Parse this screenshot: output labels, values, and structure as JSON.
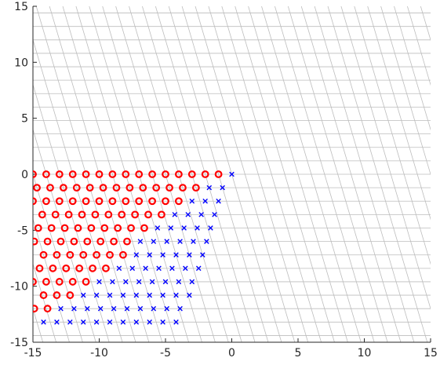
{
  "chart_data": {
    "type": "scatter",
    "title": "",
    "xlabel": "",
    "ylabel": "",
    "xlim": [
      -15,
      15
    ],
    "ylim": [
      -15,
      15
    ],
    "xticks": [
      -15,
      -10,
      -5,
      0,
      5,
      10,
      15
    ],
    "yticks": [
      -15,
      -10,
      -5,
      0,
      5,
      10,
      15
    ],
    "grid": "skewed lattice lines",
    "lattice": {
      "basis_x": [
        1,
        0
      ],
      "basis_y": [
        0.3,
        -1.2
      ],
      "rows": 13
    },
    "series": [
      {
        "marker": "circle",
        "color": "#ff0000",
        "points": [
          [
            -15.0,
            0.0
          ],
          [
            -14.0,
            0.0
          ],
          [
            -13.0,
            0.0
          ],
          [
            -12.0,
            0.0
          ],
          [
            -11.0,
            0.0
          ],
          [
            -10.0,
            0.0
          ],
          [
            -9.0,
            0.0
          ],
          [
            -8.0,
            0.0
          ],
          [
            -7.0,
            0.0
          ],
          [
            -6.0,
            0.0
          ],
          [
            -5.0,
            0.0
          ],
          [
            -4.0,
            0.0
          ],
          [
            -3.0,
            0.0
          ],
          [
            -2.0,
            0.0
          ],
          [
            -1.0,
            0.0
          ],
          [
            -14.7,
            -1.2
          ],
          [
            -13.7,
            -1.2
          ],
          [
            -12.7,
            -1.2
          ],
          [
            -11.7,
            -1.2
          ],
          [
            -10.7,
            -1.2
          ],
          [
            -9.7,
            -1.2
          ],
          [
            -8.7,
            -1.2
          ],
          [
            -7.7,
            -1.2
          ],
          [
            -6.7,
            -1.2
          ],
          [
            -5.7,
            -1.2
          ],
          [
            -4.7,
            -1.2
          ],
          [
            -3.7,
            -1.2
          ],
          [
            -2.7,
            -1.2
          ],
          [
            -15.0,
            -2.4
          ],
          [
            -14.0,
            -2.4
          ],
          [
            -13.0,
            -2.4
          ],
          [
            -12.0,
            -2.4
          ],
          [
            -11.0,
            -2.4
          ],
          [
            -10.0,
            -2.4
          ],
          [
            -9.0,
            -2.4
          ],
          [
            -8.0,
            -2.4
          ],
          [
            -7.0,
            -2.4
          ],
          [
            -6.0,
            -2.4
          ],
          [
            -5.0,
            -2.4
          ],
          [
            -4.0,
            -2.4
          ],
          [
            -14.3,
            -3.6
          ],
          [
            -13.3,
            -3.6
          ],
          [
            -12.3,
            -3.6
          ],
          [
            -11.3,
            -3.6
          ],
          [
            -10.3,
            -3.6
          ],
          [
            -9.3,
            -3.6
          ],
          [
            -8.3,
            -3.6
          ],
          [
            -7.3,
            -3.6
          ],
          [
            -6.3,
            -3.6
          ],
          [
            -5.3,
            -3.6
          ],
          [
            -14.6,
            -4.8
          ],
          [
            -13.6,
            -4.8
          ],
          [
            -12.6,
            -4.8
          ],
          [
            -11.6,
            -4.8
          ],
          [
            -10.6,
            -4.8
          ],
          [
            -9.6,
            -4.8
          ],
          [
            -8.6,
            -4.8
          ],
          [
            -7.6,
            -4.8
          ],
          [
            -6.6,
            -4.8
          ],
          [
            -14.9,
            -6.0
          ],
          [
            -13.9,
            -6.0
          ],
          [
            -12.9,
            -6.0
          ],
          [
            -11.9,
            -6.0
          ],
          [
            -10.9,
            -6.0
          ],
          [
            -9.9,
            -6.0
          ],
          [
            -8.9,
            -6.0
          ],
          [
            -7.9,
            -6.0
          ],
          [
            -14.2,
            -7.2
          ],
          [
            -13.2,
            -7.2
          ],
          [
            -12.2,
            -7.2
          ],
          [
            -11.2,
            -7.2
          ],
          [
            -10.2,
            -7.2
          ],
          [
            -9.2,
            -7.2
          ],
          [
            -8.2,
            -7.2
          ],
          [
            -14.5,
            -8.4
          ],
          [
            -13.5,
            -8.4
          ],
          [
            -12.5,
            -8.4
          ],
          [
            -11.5,
            -8.4
          ],
          [
            -10.5,
            -8.4
          ],
          [
            -9.5,
            -8.4
          ],
          [
            -15.0,
            -9.6
          ],
          [
            -14.0,
            -9.6
          ],
          [
            -13.0,
            -9.6
          ],
          [
            -12.0,
            -9.6
          ],
          [
            -11.0,
            -9.6
          ],
          [
            -14.2,
            -10.8
          ],
          [
            -13.2,
            -10.8
          ],
          [
            -12.2,
            -10.8
          ],
          [
            -14.9,
            -12.0
          ],
          [
            -13.9,
            -12.0
          ]
        ]
      },
      {
        "marker": "x",
        "color": "#0000ff",
        "points": [
          [
            0.0,
            0.0
          ],
          [
            -1.7,
            -1.2
          ],
          [
            -0.7,
            -1.2
          ],
          [
            -3.0,
            -2.4
          ],
          [
            -2.0,
            -2.4
          ],
          [
            -1.0,
            -2.4
          ],
          [
            -4.3,
            -3.6
          ],
          [
            -3.3,
            -3.6
          ],
          [
            -2.3,
            -3.6
          ],
          [
            -1.3,
            -3.6
          ],
          [
            -5.6,
            -4.8
          ],
          [
            -4.6,
            -4.8
          ],
          [
            -3.6,
            -4.8
          ],
          [
            -2.6,
            -4.8
          ],
          [
            -1.6,
            -4.8
          ],
          [
            -6.9,
            -6.0
          ],
          [
            -5.9,
            -6.0
          ],
          [
            -4.9,
            -6.0
          ],
          [
            -3.9,
            -6.0
          ],
          [
            -2.9,
            -6.0
          ],
          [
            -1.9,
            -6.0
          ],
          [
            -7.2,
            -7.2
          ],
          [
            -6.2,
            -7.2
          ],
          [
            -5.2,
            -7.2
          ],
          [
            -4.2,
            -7.2
          ],
          [
            -3.2,
            -7.2
          ],
          [
            -2.2,
            -7.2
          ],
          [
            -8.5,
            -8.4
          ],
          [
            -7.5,
            -8.4
          ],
          [
            -6.5,
            -8.4
          ],
          [
            -5.5,
            -8.4
          ],
          [
            -4.5,
            -8.4
          ],
          [
            -3.5,
            -8.4
          ],
          [
            -2.5,
            -8.4
          ],
          [
            -10.0,
            -9.6
          ],
          [
            -9.0,
            -9.6
          ],
          [
            -8.0,
            -9.6
          ],
          [
            -7.0,
            -9.6
          ],
          [
            -6.0,
            -9.6
          ],
          [
            -5.0,
            -9.6
          ],
          [
            -4.0,
            -9.6
          ],
          [
            -3.0,
            -9.6
          ],
          [
            -11.2,
            -10.8
          ],
          [
            -10.2,
            -10.8
          ],
          [
            -9.2,
            -10.8
          ],
          [
            -8.2,
            -10.8
          ],
          [
            -7.2,
            -10.8
          ],
          [
            -6.2,
            -10.8
          ],
          [
            -5.2,
            -10.8
          ],
          [
            -4.2,
            -10.8
          ],
          [
            -3.2,
            -10.8
          ],
          [
            -12.9,
            -12.0
          ],
          [
            -11.9,
            -12.0
          ],
          [
            -10.9,
            -12.0
          ],
          [
            -9.9,
            -12.0
          ],
          [
            -8.9,
            -12.0
          ],
          [
            -7.9,
            -12.0
          ],
          [
            -6.9,
            -12.0
          ],
          [
            -5.9,
            -12.0
          ],
          [
            -4.9,
            -12.0
          ],
          [
            -3.9,
            -12.0
          ],
          [
            -14.2,
            -13.2
          ],
          [
            -13.2,
            -13.2
          ],
          [
            -12.2,
            -13.2
          ],
          [
            -11.2,
            -13.2
          ],
          [
            -10.2,
            -13.2
          ],
          [
            -9.2,
            -13.2
          ],
          [
            -8.2,
            -13.2
          ],
          [
            -7.2,
            -13.2
          ],
          [
            -6.2,
            -13.2
          ],
          [
            -5.2,
            -13.2
          ],
          [
            -4.2,
            -13.2
          ]
        ]
      }
    ]
  }
}
